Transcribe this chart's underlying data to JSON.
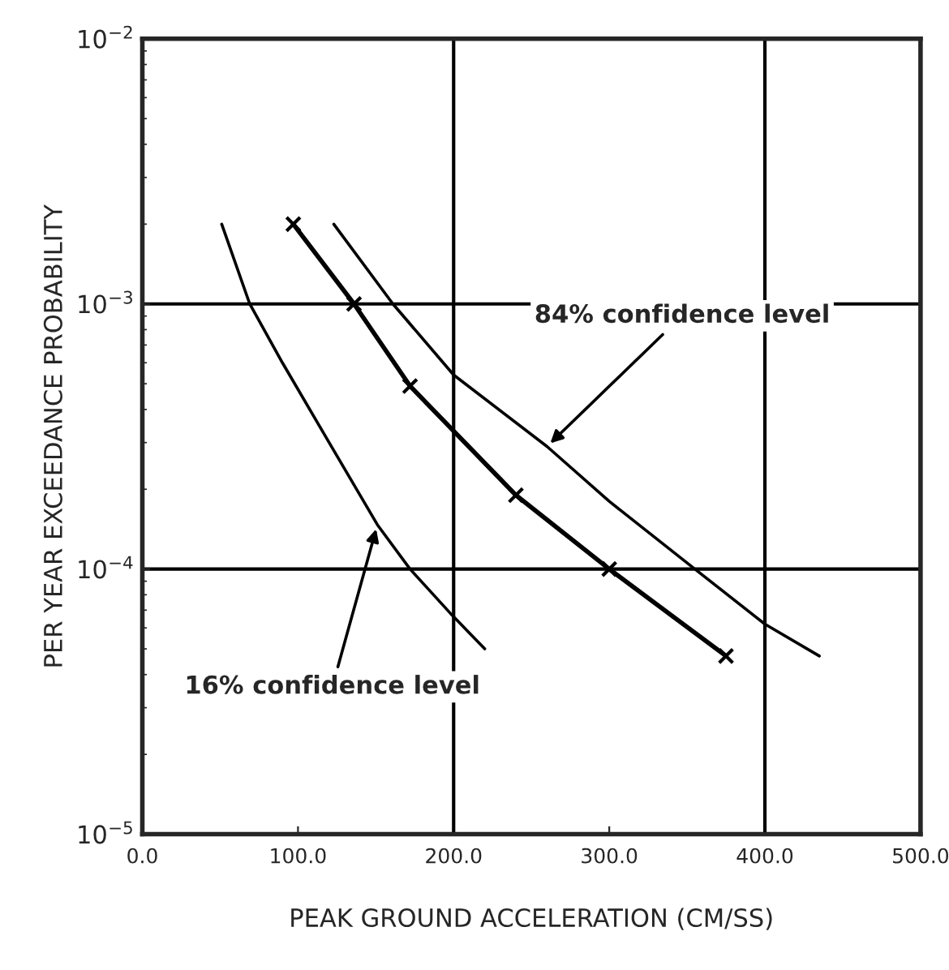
{
  "chart_data": {
    "type": "line",
    "xlabel": "PEAK GROUND ACCELERATION (CM/SS)",
    "ylabel": "PER YEAR EXCEEDANCE PROBABILITY",
    "series": [
      {
        "color": "#000000",
        "x": [
          51,
          69,
          90,
          120,
          151,
          172,
          198,
          220
        ],
        "values": [
          0.002,
          0.001,
          0.0006,
          0.0003,
          0.000147,
          0.0001,
          6.8e-05,
          5e-05
        ],
        "marker": "none"
      },
      {
        "color": "#000000",
        "x": [
          97,
          136,
          172,
          240,
          300,
          375
        ],
        "values": [
          0.002,
          0.001,
          0.00049,
          0.00019,
          0.0001,
          4.7e-05
        ],
        "marker": "cross"
      },
      {
        "color": "#000000",
        "x": [
          123,
          161,
          200,
          260,
          300,
          355,
          400,
          435
        ],
        "values": [
          0.002,
          0.001,
          0.00054,
          0.00029,
          0.00018,
          0.0001,
          6.2e-05,
          4.7e-05
        ],
        "marker": "none"
      }
    ],
    "log": "y",
    "xlim": [
      0,
      500
    ],
    "ylim": [
      1e-05,
      0.01
    ],
    "xticks": [
      {
        "value": 0,
        "label": "0.0"
      },
      {
        "value": 100,
        "label": "100.0"
      },
      {
        "value": 200,
        "label": "200.0"
      },
      {
        "value": 300,
        "label": "300.0"
      },
      {
        "value": 400,
        "label": "400.0"
      },
      {
        "value": 500,
        "label": "500.0"
      }
    ],
    "yticks": [
      {
        "value": 1e-05,
        "label": "10$^{−5}$"
      },
      {
        "value": 0.0001,
        "label": "10$^{−4}$"
      },
      {
        "value": 0.001,
        "label": "10$^{−3}$"
      },
      {
        "value": 0.01,
        "label": "10$^{−2}$"
      }
    ],
    "grid": "y",
    "ref_lines": [
      {
        "axis": "x",
        "value": 200,
        "color": "#000000"
      },
      {
        "axis": "x",
        "value": 400,
        "color": "#000000"
      }
    ],
    "annotations": [
      {
        "text": "84% confidence level",
        "x": 260,
        "y": 0.00029
      },
      {
        "text": "16% confidence level",
        "x": 151,
        "y": 0.000147
      }
    ]
  }
}
